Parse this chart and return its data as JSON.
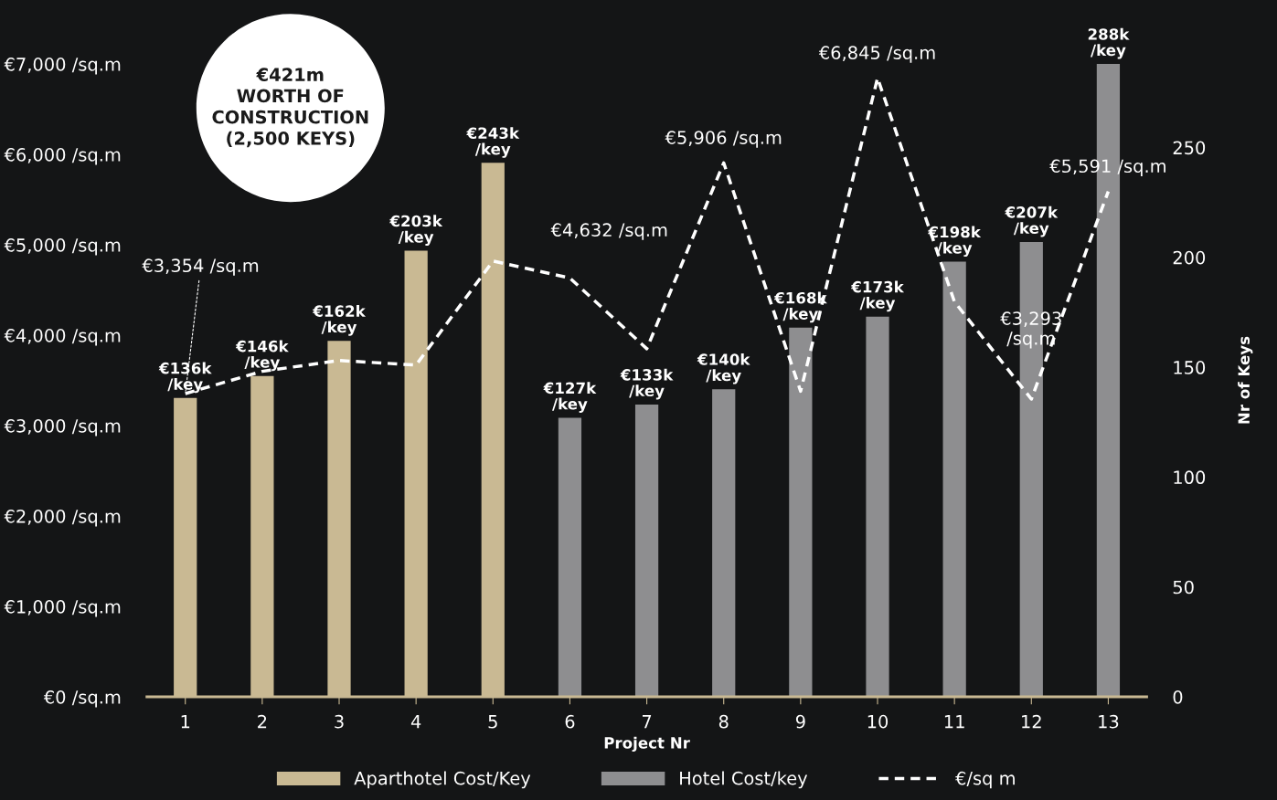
{
  "chart_data": {
    "type": "bar",
    "categories": [
      "1",
      "2",
      "3",
      "4",
      "5",
      "6",
      "7",
      "8",
      "9",
      "10",
      "11",
      "12",
      "13"
    ],
    "xlabel": "Project Nr",
    "y2label": "Nr of Keys",
    "series": [
      {
        "name": "Aparthotel Cost/Key",
        "axis": "y2",
        "color": "#c9b993",
        "values": [
          136,
          146,
          162,
          203,
          243,
          null,
          null,
          null,
          null,
          null,
          null,
          null,
          null
        ],
        "value_labels": [
          "€136k\n/key",
          "€146k\n/key",
          "€162k\n/key",
          "€203k\n/key",
          "€243k\n/key",
          null,
          null,
          null,
          null,
          null,
          null,
          null,
          null
        ]
      },
      {
        "name": "Hotel Cost/key",
        "axis": "y2",
        "color": "#8e8e90",
        "values": [
          null,
          null,
          null,
          null,
          null,
          127,
          133,
          140,
          168,
          173,
          198,
          207,
          288
        ],
        "value_labels": [
          null,
          null,
          null,
          null,
          null,
          "€127k\n/key",
          "€133k\n/key",
          "€140k\n/key",
          "€168k\n/key",
          "€173k\n/key",
          "€198k\n/key",
          "€207k\n/key",
          "288k\n/key"
        ]
      },
      {
        "name": "€/sq m",
        "type": "line",
        "axis": "y",
        "color": "#ffffff",
        "line_style": "dashed",
        "marker": "none",
        "values": [
          3354,
          3600,
          3720,
          3670,
          4820,
          4632,
          3850,
          5906,
          3380,
          6845,
          4370,
          3293,
          5591
        ],
        "value_labels": [
          "€3,354 /sq.m",
          null,
          null,
          null,
          null,
          "€4,632 /sq.m",
          null,
          "€5,906 /sq.m",
          null,
          "€6,845 /sq.m",
          null,
          "€3,293\n/sq.m",
          "€5,591 /sq.m"
        ]
      }
    ],
    "ylim": [
      0,
      7000
    ],
    "yticks": [
      {
        "value": 0,
        "label": "€0 /sq.m"
      },
      {
        "value": 1000,
        "label": "€1,000 /sq.m"
      },
      {
        "value": 2000,
        "label": "€2,000 /sq.m"
      },
      {
        "value": 3000,
        "label": "€3,000 /sq.m"
      },
      {
        "value": 4000,
        "label": "€4,000 /sq.m"
      },
      {
        "value": 5000,
        "label": "€5,000 /sq.m"
      },
      {
        "value": 6000,
        "label": "€6,000 /sq.m"
      },
      {
        "value": 7000,
        "label": "€7,000 /sq.m"
      }
    ],
    "y2lim": [
      0,
      288
    ],
    "y2ticks": [
      0,
      50,
      100,
      150,
      200,
      250
    ],
    "annotations": [
      "€421m\nWORTH OF\nCONSTRUCTION\n(2,500 KEYS)"
    ],
    "legend": "bottom",
    "grid": false
  }
}
